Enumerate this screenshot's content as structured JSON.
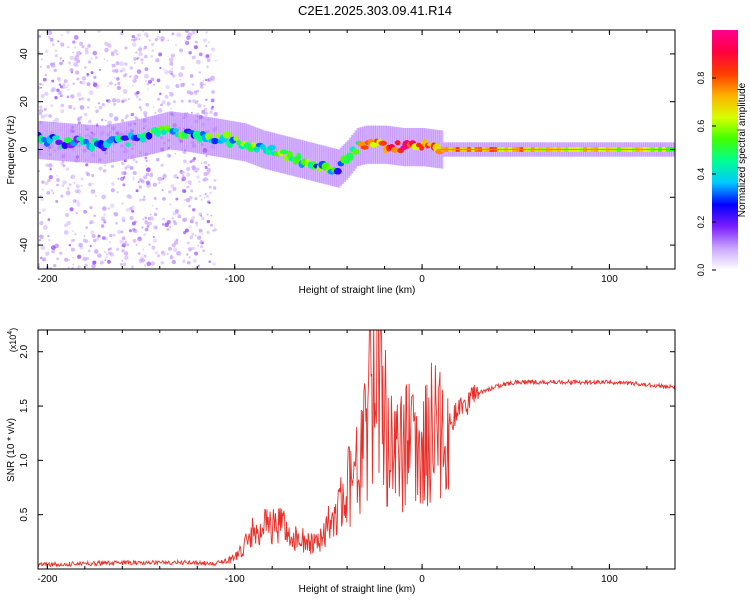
{
  "figure_title": "C2E1.2025.303.09.41.R14",
  "colors": {
    "snr_line": "#e8302a",
    "spectrogram_track": "#0a2cd6",
    "axis": "#000000"
  },
  "chart_data": [
    {
      "type": "heatmap",
      "panel": "spectrogram",
      "xlabel": "Height of straight line (km)",
      "ylabel": "Frequency (Hz)",
      "xlim": [
        -205,
        135
      ],
      "ylim": [
        -50,
        50
      ],
      "xticks": [
        -200,
        -100,
        0,
        100
      ],
      "yticks": [
        -40,
        -20,
        0,
        20,
        40
      ],
      "xtick_labels": [
        "-200",
        "-100",
        "0",
        "100"
      ],
      "ytick_labels": [
        "-40",
        "-20",
        "0",
        "20",
        "40"
      ],
      "track": {
        "x": [
          -205,
          -190,
          -170,
          -150,
          -135,
          -125,
          -110,
          -95,
          -85,
          -75,
          -65,
          -55,
          -45,
          -40,
          -35,
          -30,
          -20,
          -10,
          0,
          10,
          20,
          60,
          100,
          135
        ],
        "frequency": [
          4,
          3,
          2,
          5,
          8,
          7,
          5,
          3,
          0,
          -2,
          -4,
          -6,
          -8,
          -4,
          1,
          2,
          2,
          1,
          1,
          0,
          0,
          0,
          0,
          0
        ],
        "amplitude": [
          0.3,
          0.35,
          0.35,
          0.4,
          0.45,
          0.4,
          0.45,
          0.45,
          0.5,
          0.5,
          0.5,
          0.45,
          0.4,
          0.45,
          0.55,
          0.7,
          0.85,
          0.9,
          0.75,
          0.8,
          0.75,
          0.7,
          0.65,
          0.6
        ]
      },
      "colorbar": {
        "label": "Normalized spectral amplitude",
        "range": [
          0,
          1
        ],
        "ticks": [
          0.0,
          0.2,
          0.4,
          0.6,
          0.8
        ],
        "tick_labels": [
          "0.0",
          "0.2",
          "0.4",
          "0.6",
          "0.8"
        ],
        "stops": [
          "#ffffff",
          "#c9a6ff",
          "#7b1cff",
          "#0000ff",
          "#00c8ff",
          "#00ff90",
          "#40ff00",
          "#d8ff00",
          "#ffb000",
          "#ff3c00",
          "#ff0040",
          "#ff0090"
        ]
      }
    },
    {
      "type": "line",
      "panel": "snr",
      "xlabel": "Height of straight line (km)",
      "ylabel": "SNR (10 * v/v)",
      "ylabel_multiplier": "(x10",
      "ylabel_multiplier_exp": "4",
      "ylabel_multiplier_close": ")",
      "xlim": [
        -205,
        135
      ],
      "ylim": [
        0,
        2.2
      ],
      "xticks": [
        -200,
        -100,
        0,
        100
      ],
      "yticks": [
        0.5,
        1.0,
        1.5,
        2.0
      ],
      "xtick_labels": [
        "-200",
        "-100",
        "0",
        "100"
      ],
      "ytick_labels": [
        "0.5",
        "1.0",
        "1.5",
        "2.0"
      ],
      "series": [
        {
          "name": "SNR",
          "x": [
            -205,
            -180,
            -150,
            -125,
            -110,
            -100,
            -95,
            -90,
            -85,
            -80,
            -75,
            -70,
            -65,
            -60,
            -55,
            -50,
            -45,
            -40,
            -35,
            -30,
            -28,
            -26,
            -24,
            -22,
            -20,
            -18,
            -15,
            -12,
            -10,
            -8,
            -5,
            -2,
            0,
            2,
            5,
            8,
            10,
            12,
            15,
            20,
            25,
            30,
            40,
            50,
            60,
            80,
            100,
            120,
            135
          ],
          "values": [
            0.04,
            0.05,
            0.06,
            0.06,
            0.05,
            0.1,
            0.2,
            0.35,
            0.42,
            0.38,
            0.42,
            0.3,
            0.28,
            0.22,
            0.25,
            0.4,
            0.55,
            0.7,
            0.95,
            1.2,
            1.55,
            1.75,
            1.95,
            1.7,
            1.35,
            1.2,
            1.05,
            1.25,
            0.95,
            1.15,
            1.05,
            0.95,
            1.05,
            1.3,
            1.25,
            1.2,
            1.25,
            1.15,
            1.35,
            1.45,
            1.55,
            1.62,
            1.68,
            1.72,
            1.72,
            1.72,
            1.72,
            1.7,
            1.67
          ]
        }
      ]
    }
  ]
}
